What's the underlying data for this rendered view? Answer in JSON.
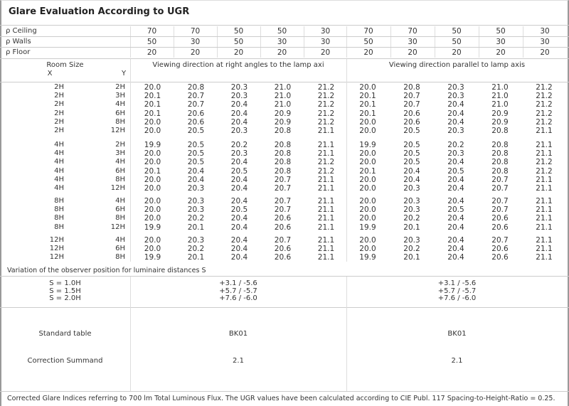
{
  "title": "Glare Evaluation According to UGR",
  "reflectance": [
    {
      "label": "ρ  Ceiling",
      "values": [
        "70",
        "70",
        "50",
        "50",
        "30",
        "70",
        "70",
        "50",
        "50",
        "30"
      ]
    },
    {
      "label": "ρ  Walls",
      "values": [
        "50",
        "30",
        "50",
        "30",
        "30",
        "50",
        "30",
        "50",
        "30",
        "30"
      ]
    },
    {
      "label": "ρ  Floor",
      "values": [
        "20",
        "20",
        "20",
        "20",
        "20",
        "20",
        "20",
        "20",
        "20",
        "20"
      ]
    }
  ],
  "header": {
    "room_size": "Room Size",
    "x": "X",
    "y": "Y",
    "left_title": "Viewing direction at right angles to the lamp axi",
    "right_title": "Viewing direction parallel to lamp axis"
  },
  "groups": [
    [
      [
        "2H",
        "2H",
        "20.0",
        "20.8",
        "20.3",
        "21.0",
        "21.2"
      ],
      [
        "2H",
        "3H",
        "20.1",
        "20.7",
        "20.3",
        "21.0",
        "21.2"
      ],
      [
        "2H",
        "4H",
        "20.1",
        "20.7",
        "20.4",
        "21.0",
        "21.2"
      ],
      [
        "2H",
        "6H",
        "20.1",
        "20.6",
        "20.4",
        "20.9",
        "21.2"
      ],
      [
        "2H",
        "8H",
        "20.0",
        "20.6",
        "20.4",
        "20.9",
        "21.2"
      ],
      [
        "2H",
        "12H",
        "20.0",
        "20.5",
        "20.3",
        "20.8",
        "21.1"
      ]
    ],
    [
      [
        "4H",
        "2H",
        "19.9",
        "20.5",
        "20.2",
        "20.8",
        "21.1"
      ],
      [
        "4H",
        "3H",
        "20.0",
        "20.5",
        "20.3",
        "20.8",
        "21.1"
      ],
      [
        "4H",
        "4H",
        "20.0",
        "20.5",
        "20.4",
        "20.8",
        "21.2"
      ],
      [
        "4H",
        "6H",
        "20.1",
        "20.4",
        "20.5",
        "20.8",
        "21.2"
      ],
      [
        "4H",
        "8H",
        "20.0",
        "20.4",
        "20.4",
        "20.7",
        "21.1"
      ],
      [
        "4H",
        "12H",
        "20.0",
        "20.3",
        "20.4",
        "20.7",
        "21.1"
      ]
    ],
    [
      [
        "8H",
        "4H",
        "20.0",
        "20.3",
        "20.4",
        "20.7",
        "21.1"
      ],
      [
        "8H",
        "6H",
        "20.0",
        "20.3",
        "20.5",
        "20.7",
        "21.1"
      ],
      [
        "8H",
        "8H",
        "20.0",
        "20.2",
        "20.4",
        "20.6",
        "21.1"
      ],
      [
        "8H",
        "12H",
        "19.9",
        "20.1",
        "20.4",
        "20.6",
        "21.1"
      ]
    ],
    [
      [
        "12H",
        "4H",
        "20.0",
        "20.3",
        "20.4",
        "20.7",
        "21.1"
      ],
      [
        "12H",
        "6H",
        "20.0",
        "20.2",
        "20.4",
        "20.6",
        "21.1"
      ],
      [
        "12H",
        "8H",
        "19.9",
        "20.1",
        "20.4",
        "20.6",
        "21.1"
      ]
    ]
  ],
  "right_groups": [
    [
      [
        "20.0",
        "20.8",
        "20.3",
        "21.0",
        "21.2"
      ],
      [
        "20.1",
        "20.7",
        "20.3",
        "21.0",
        "21.2"
      ],
      [
        "20.1",
        "20.7",
        "20.4",
        "21.0",
        "21.2"
      ],
      [
        "20.1",
        "20.6",
        "20.4",
        "20.9",
        "21.2"
      ],
      [
        "20.0",
        "20.6",
        "20.4",
        "20.9",
        "21.2"
      ],
      [
        "20.0",
        "20.5",
        "20.3",
        "20.8",
        "21.1"
      ]
    ],
    [
      [
        "19.9",
        "20.5",
        "20.2",
        "20.8",
        "21.1"
      ],
      [
        "20.0",
        "20.5",
        "20.3",
        "20.8",
        "21.1"
      ],
      [
        "20.0",
        "20.5",
        "20.4",
        "20.8",
        "21.2"
      ],
      [
        "20.1",
        "20.4",
        "20.5",
        "20.8",
        "21.2"
      ],
      [
        "20.0",
        "20.4",
        "20.4",
        "20.7",
        "21.1"
      ],
      [
        "20.0",
        "20.3",
        "20.4",
        "20.7",
        "21.1"
      ]
    ],
    [
      [
        "20.0",
        "20.3",
        "20.4",
        "20.7",
        "21.1"
      ],
      [
        "20.0",
        "20.3",
        "20.5",
        "20.7",
        "21.1"
      ],
      [
        "20.0",
        "20.2",
        "20.4",
        "20.6",
        "21.1"
      ],
      [
        "19.9",
        "20.1",
        "20.4",
        "20.6",
        "21.1"
      ]
    ],
    [
      [
        "20.0",
        "20.3",
        "20.4",
        "20.7",
        "21.1"
      ],
      [
        "20.0",
        "20.2",
        "20.4",
        "20.6",
        "21.1"
      ],
      [
        "19.9",
        "20.1",
        "20.4",
        "20.6",
        "21.1"
      ]
    ]
  ],
  "variation": {
    "title": "Variation of the observer position for luminaire distances S",
    "rows": [
      {
        "s": "S = 1.0H",
        "left": "+3.1 / -5.6",
        "right": "+3.1 / -5.6"
      },
      {
        "s": "S = 1.5H",
        "left": "+5.7 / -5.7",
        "right": "+5.7 / -5.7"
      },
      {
        "s": "S = 2.0H",
        "left": "+7.6 / -6.0",
        "right": "+7.6 / -6.0"
      }
    ]
  },
  "standard_table": {
    "label": "Standard table",
    "left": "BK01",
    "right": "BK01"
  },
  "correction": {
    "label": "Correction Summand",
    "left": "2.1",
    "right": "2.1"
  },
  "footer": "Corrected Glare Indices referring to 700 lm Total Luminous Flux. The UGR values have been calculated according to CIE Publ. 117    Spacing-to-Height-Ratio = 0.25."
}
